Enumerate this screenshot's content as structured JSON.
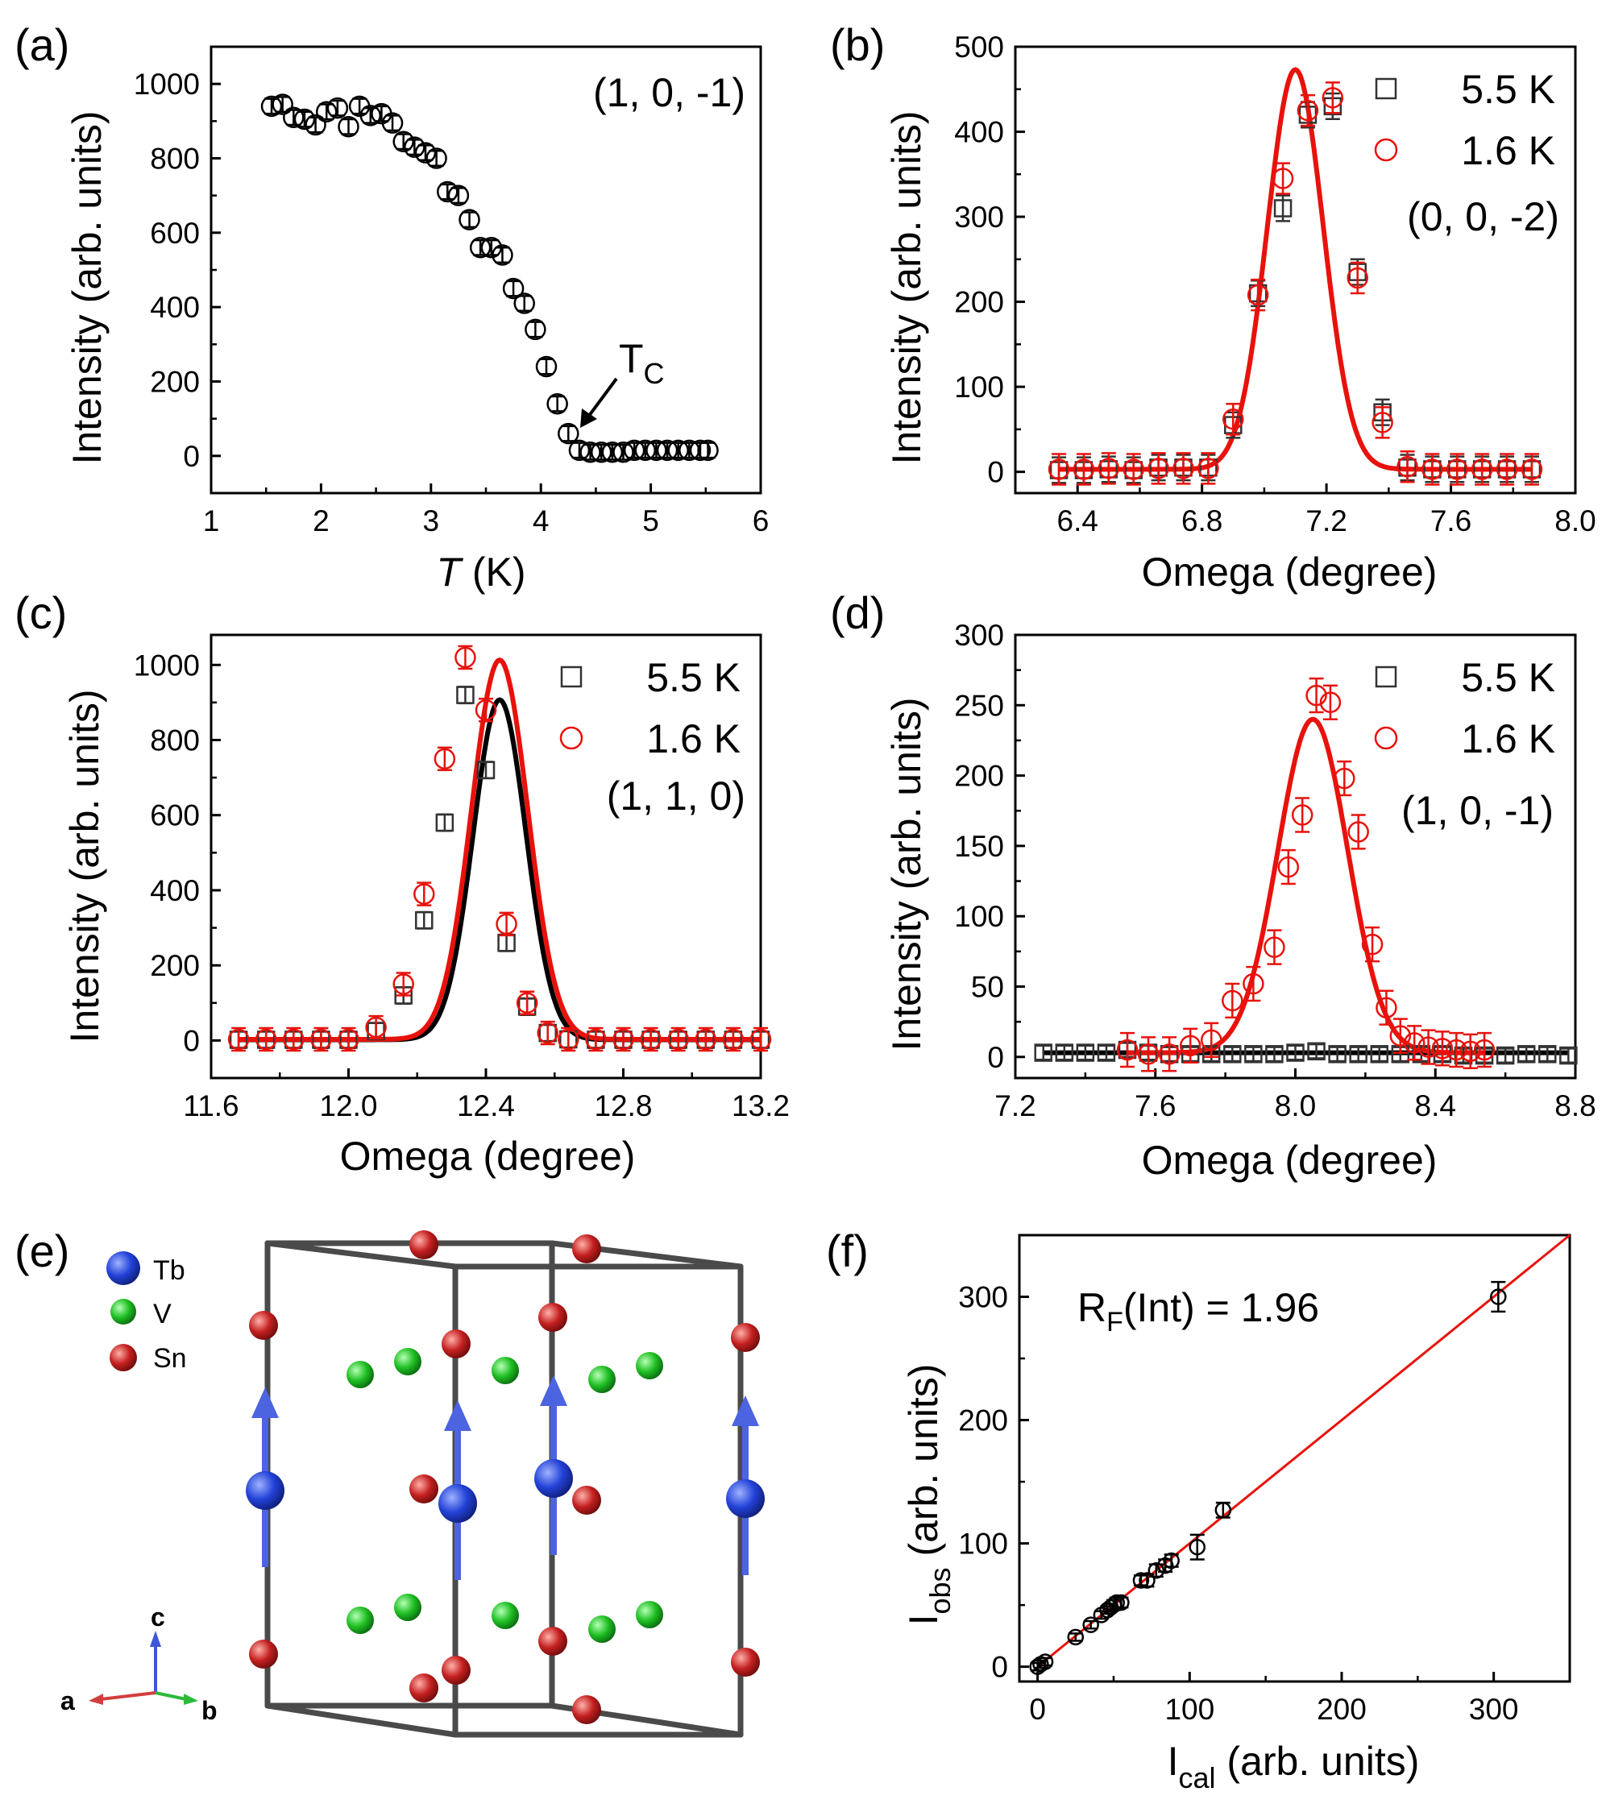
{
  "colors": {
    "black": "#000000",
    "grey": "#333333",
    "red": "#e8120c",
    "redMarker": "#e8120c",
    "tb": "#2342d8",
    "v": "#1fbf23",
    "sn": "#c42020",
    "frame": "#4a4a4a",
    "arrow": "#4c64e0"
  },
  "chart_data": [
    {
      "id": "a",
      "panel_label": "(a)",
      "type": "scatter",
      "annotation": "(1, 0, -1)",
      "xlabel_italic": "T",
      "xlabel_rest": " (K)",
      "ylabel": "Intensity (arb. units)",
      "xlim": [
        1,
        6
      ],
      "ylim": [
        -100,
        1100
      ],
      "xticks": [
        1,
        2,
        3,
        4,
        5,
        6
      ],
      "yticks": [
        0,
        200,
        400,
        600,
        800,
        1000
      ],
      "tc_label": "T",
      "tc_sub": "C",
      "tc_x": 4.35,
      "tc_y": 50,
      "series": [
        {
          "name": "data",
          "marker": "circle",
          "color": "#000000",
          "err": 20,
          "x": [
            1.55,
            1.65,
            1.75,
            1.85,
            1.95,
            2.05,
            2.15,
            2.25,
            2.35,
            2.45,
            2.55,
            2.65,
            2.75,
            2.85,
            2.95,
            3.05,
            3.15,
            3.25,
            3.35,
            3.45,
            3.55,
            3.65,
            3.75,
            3.85,
            3.95,
            4.05,
            4.15,
            4.25,
            4.35,
            4.45,
            4.55,
            4.65,
            4.75,
            4.85,
            4.95,
            5.05,
            5.15,
            5.25,
            5.35,
            5.45,
            5.52
          ],
          "y": [
            940,
            945,
            910,
            905,
            890,
            925,
            935,
            885,
            940,
            915,
            920,
            895,
            845,
            830,
            815,
            800,
            710,
            700,
            635,
            560,
            560,
            540,
            450,
            410,
            340,
            240,
            140,
            60,
            15,
            10,
            10,
            10,
            10,
            15,
            15,
            15,
            15,
            15,
            15,
            15,
            15
          ]
        }
      ]
    },
    {
      "id": "b",
      "panel_label": "(b)",
      "type": "scatter",
      "annotation": "(0, 0, -2)",
      "xlabel": "Omega (degree)",
      "ylabel": "Intensity (arb. units)",
      "xlim": [
        6.2,
        8.0
      ],
      "ylim": [
        -25,
        500
      ],
      "xticks": [
        6.4,
        6.8,
        7.2,
        7.6,
        8.0
      ],
      "yticks": [
        0,
        100,
        200,
        300,
        400,
        500
      ],
      "legend": [
        {
          "label": "5.5 K",
          "marker": "square",
          "color": "#333333"
        },
        {
          "label": "1.6 K",
          "marker": "circle",
          "color": "#e8120c"
        }
      ],
      "series": [
        {
          "name": "5.5 K",
          "marker": "square",
          "color": "#333333",
          "err": 15,
          "x": [
            6.34,
            6.42,
            6.5,
            6.58,
            6.66,
            6.74,
            6.82,
            6.9,
            6.98,
            7.06,
            7.14,
            7.22,
            7.3,
            7.38,
            7.46,
            7.54,
            7.62,
            7.7,
            7.78,
            7.86
          ],
          "y": [
            2,
            2,
            3,
            2,
            5,
            5,
            5,
            55,
            210,
            310,
            420,
            430,
            235,
            70,
            5,
            3,
            3,
            3,
            3,
            3
          ]
        },
        {
          "name": "1.6 K",
          "marker": "circle",
          "color": "#e8120c",
          "err": 18,
          "x": [
            6.34,
            6.42,
            6.5,
            6.58,
            6.66,
            6.74,
            6.82,
            6.9,
            6.98,
            7.06,
            7.14,
            7.22,
            7.3,
            7.38,
            7.46,
            7.54,
            7.62,
            7.7,
            7.78,
            7.86
          ],
          "y": [
            3,
            3,
            4,
            3,
            4,
            4,
            4,
            62,
            208,
            345,
            425,
            440,
            228,
            58,
            6,
            3,
            3,
            3,
            3,
            3
          ]
        }
      ],
      "fits": [
        {
          "name": "fit 1.6 K",
          "color": "#e8120c",
          "amp": 470,
          "center": 7.1,
          "sigma": 0.09,
          "base": 3,
          "from": 6.34,
          "to": 7.86
        }
      ]
    },
    {
      "id": "c",
      "panel_label": "(c)",
      "type": "scatter",
      "annotation": "(1, 1, 0)",
      "xlabel": "Omega (degree)",
      "ylabel": "Intensity (arb. units)",
      "xlim": [
        11.6,
        13.2
      ],
      "ylim": [
        -100,
        1080
      ],
      "xticks": [
        11.6,
        12.0,
        12.4,
        12.8,
        13.2
      ],
      "yticks": [
        0,
        200,
        400,
        600,
        800,
        1000
      ],
      "legend": [
        {
          "label": "5.5 K",
          "marker": "square",
          "color": "#333333"
        },
        {
          "label": "1.6 K",
          "marker": "circle",
          "color": "#e8120c"
        }
      ],
      "series": [
        {
          "name": "5.5 K",
          "marker": "square",
          "color": "#333333",
          "err": 22,
          "x": [
            11.68,
            11.76,
            11.84,
            11.92,
            12.0,
            12.08,
            12.16,
            12.22,
            12.28,
            12.34,
            12.4,
            12.46,
            12.52,
            12.58,
            12.64,
            12.72,
            12.8,
            12.88,
            12.96,
            13.04,
            13.12,
            13.2
          ],
          "y": [
            2,
            2,
            2,
            2,
            2,
            25,
            120,
            320,
            580,
            920,
            720,
            260,
            90,
            20,
            3,
            2,
            2,
            2,
            2,
            2,
            2,
            2
          ]
        },
        {
          "name": "1.6 K",
          "marker": "circle",
          "color": "#e8120c",
          "err": 30,
          "x": [
            11.68,
            11.76,
            11.84,
            11.92,
            12.0,
            12.08,
            12.16,
            12.22,
            12.28,
            12.34,
            12.4,
            12.46,
            12.52,
            12.58,
            12.64,
            12.72,
            12.8,
            12.88,
            12.96,
            13.04,
            13.12,
            13.2
          ],
          "y": [
            3,
            3,
            3,
            3,
            3,
            35,
            150,
            390,
            750,
            1020,
            880,
            310,
            100,
            20,
            3,
            3,
            3,
            3,
            3,
            3,
            3,
            3
          ]
        }
      ],
      "fits": [
        {
          "name": "fit 5.5 K",
          "color": "#000000",
          "amp": 905,
          "center": 12.44,
          "sigma": 0.077,
          "base": 2,
          "from": 11.68,
          "to": 13.2
        },
        {
          "name": "fit 1.6 K",
          "color": "#e8120c",
          "amp": 1010,
          "center": 12.44,
          "sigma": 0.082,
          "base": 3,
          "from": 11.68,
          "to": 13.2
        }
      ]
    },
    {
      "id": "d",
      "panel_label": "(d)",
      "type": "scatter",
      "annotation": "(1, 0, -1)",
      "xlabel": "Omega (degree)",
      "ylabel": "Intensity (arb. units)",
      "xlim": [
        7.2,
        8.8
      ],
      "ylim": [
        -15,
        300
      ],
      "xticks": [
        7.2,
        7.6,
        8.0,
        8.4,
        8.8
      ],
      "yticks": [
        0,
        50,
        100,
        150,
        200,
        250,
        300
      ],
      "legend": [
        {
          "label": "5.5 K",
          "marker": "square",
          "color": "#333333"
        },
        {
          "label": "1.6 K",
          "marker": "circle",
          "color": "#e8120c"
        }
      ],
      "series": [
        {
          "name": "5.5 K",
          "marker": "square",
          "color": "#333333",
          "err": 5,
          "x": [
            7.28,
            7.34,
            7.4,
            7.46,
            7.52,
            7.58,
            7.64,
            7.7,
            7.76,
            7.82,
            7.88,
            7.94,
            8.0,
            8.06,
            8.12,
            8.18,
            8.24,
            8.3,
            8.36,
            8.42,
            8.48,
            8.54,
            8.6,
            8.66,
            8.72,
            8.78
          ],
          "y": [
            3,
            3,
            3,
            3,
            5,
            3,
            2,
            2,
            2,
            2,
            2,
            2,
            3,
            4,
            2,
            2,
            2,
            2,
            2,
            2,
            1,
            1,
            1,
            2,
            2,
            1
          ]
        },
        {
          "name": "1.6 K",
          "marker": "circle",
          "color": "#e8120c",
          "err": 12,
          "x": [
            7.52,
            7.58,
            7.64,
            7.7,
            7.76,
            7.82,
            7.88,
            7.94,
            7.98,
            8.02,
            8.06,
            8.1,
            8.14,
            8.18,
            8.22,
            8.26,
            8.3,
            8.34,
            8.38,
            8.42,
            8.46,
            8.5,
            8.54
          ],
          "y": [
            5,
            2,
            2,
            8,
            12,
            40,
            52,
            78,
            135,
            172,
            257,
            252,
            198,
            160,
            80,
            35,
            15,
            10,
            7,
            6,
            5,
            4,
            5
          ]
        }
      ],
      "fits": [
        {
          "name": "fit 5.5 K",
          "color": "#000000",
          "amp": 0,
          "center": 8.0,
          "sigma": 0.1,
          "base": 3,
          "from": 7.28,
          "to": 8.78
        },
        {
          "name": "fit 1.6 K",
          "color": "#e8120c",
          "amp": 237,
          "center": 8.05,
          "sigma": 0.1,
          "base": 3,
          "from": 7.52,
          "to": 8.54
        }
      ]
    },
    {
      "id": "f",
      "panel_label": "(f)",
      "type": "scatter",
      "annotation_main": "R",
      "annotation_sub": "F",
      "annotation_rest": "(Int) = 1.96",
      "xlabel_main": "I",
      "xlabel_sub": "cal",
      "xlabel_rest": " (arb. units)",
      "ylabel_main": "I",
      "ylabel_sub": "obs",
      "ylabel_rest": " (arb. units)",
      "xlim": [
        -12,
        350
      ],
      "ylim": [
        -12,
        350
      ],
      "xticks": [
        0,
        100,
        200,
        300
      ],
      "yticks": [
        0,
        100,
        200,
        300
      ],
      "series": [
        {
          "name": "data",
          "marker": "circle",
          "color": "#000000",
          "x": [
            0,
            2,
            5,
            25,
            35,
            42,
            46,
            48,
            50,
            52,
            55,
            68,
            72,
            78,
            84,
            88,
            105,
            122,
            303
          ],
          "y": [
            0,
            2,
            4,
            24,
            34,
            42,
            46,
            48,
            50,
            52,
            52,
            70,
            70,
            78,
            82,
            86,
            97,
            127,
            300
          ],
          "err": [
            3,
            3,
            3,
            3,
            3,
            3,
            3,
            3,
            4,
            4,
            4,
            4,
            5,
            5,
            5,
            5,
            10,
            6,
            12
          ]
        }
      ],
      "fit_line": {
        "color": "#e8120c",
        "from": 0,
        "to": 350
      }
    }
  ],
  "structure": {
    "panel_label": "(e)",
    "legend": [
      {
        "label": "Tb",
        "color": "#2342d8"
      },
      {
        "label": "V",
        "color": "#1fbf23"
      },
      {
        "label": "Sn",
        "color": "#c42020"
      }
    ],
    "axes": {
      "a": "a",
      "b": "b",
      "c": "c"
    }
  }
}
